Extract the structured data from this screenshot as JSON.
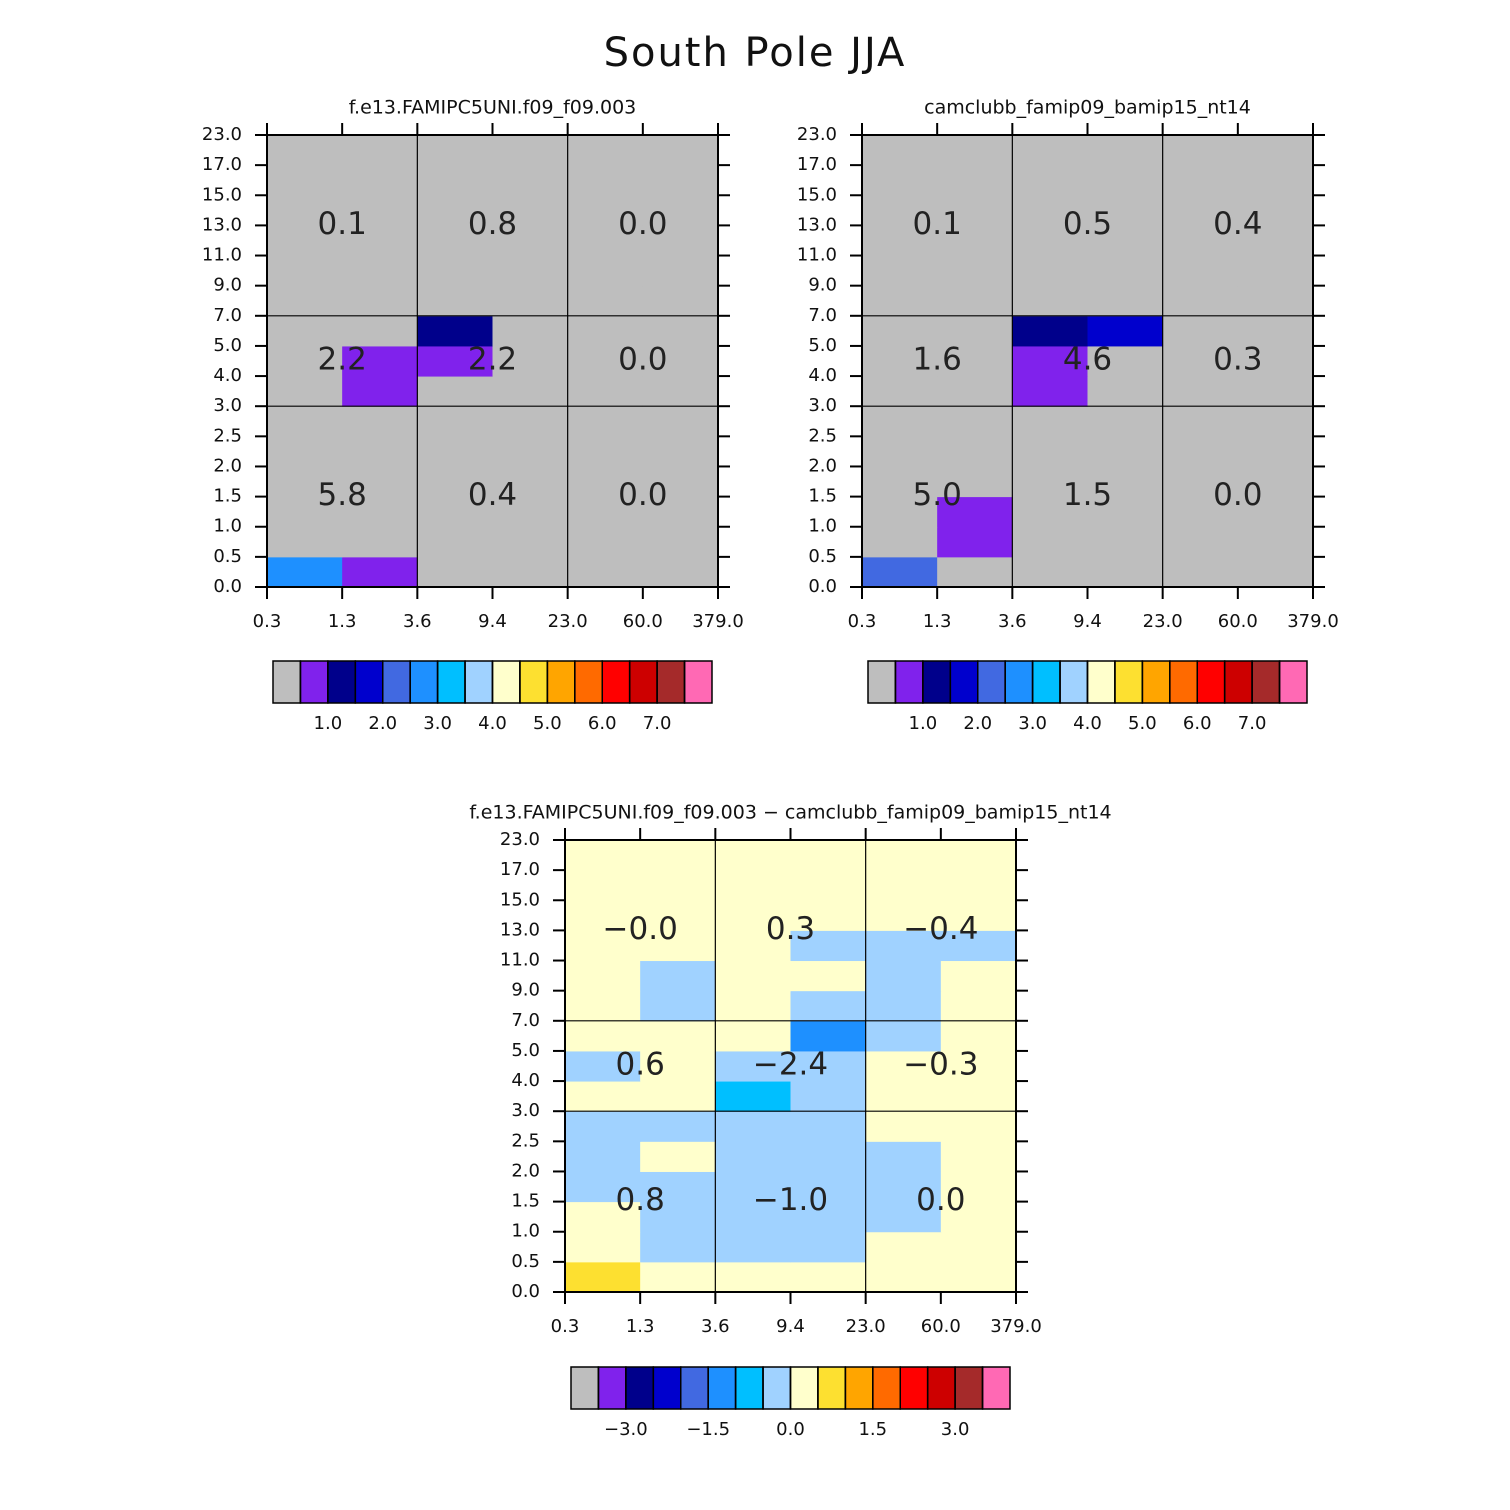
{
  "title": "South Pole JJA",
  "chart_data": [
    {
      "type": "heatmap",
      "title": "f.e13.FAMIPC5UNI.f09_f09.003",
      "x_edges": [
        "0.3",
        "1.3",
        "3.6",
        "9.4",
        "23.0",
        "60.0",
        "379.0"
      ],
      "y_edges": [
        "0.0",
        "0.5",
        "1.0",
        "1.5",
        "2.0",
        "2.5",
        "3.0",
        "4.0",
        "5.0",
        "7.0",
        "9.0",
        "11.0",
        "13.0",
        "15.0",
        "17.0",
        "23.0"
      ],
      "cells": [
        [
          2.75,
          0.75,
          0.1,
          0.1,
          0,
          0
        ],
        [
          0.1,
          0.1,
          0.1,
          0.1,
          0,
          0
        ],
        [
          0.1,
          0.1,
          0.1,
          0.1,
          0,
          0
        ],
        [
          0.1,
          0.1,
          0.1,
          0.1,
          0,
          0
        ],
        [
          0.1,
          0.1,
          0.1,
          0.1,
          0,
          0
        ],
        [
          0.1,
          0.1,
          0.1,
          0.1,
          0,
          0
        ],
        [
          0.1,
          0.75,
          0.1,
          0.1,
          0,
          0
        ],
        [
          0.1,
          0.75,
          0.75,
          0.1,
          0,
          0
        ],
        [
          0.1,
          0.1,
          1.25,
          0.1,
          0,
          0
        ],
        [
          0.1,
          0.1,
          0.1,
          0.1,
          0,
          0
        ],
        [
          0.1,
          0.1,
          0.1,
          0.1,
          0,
          0
        ],
        [
          0.1,
          0.1,
          0.1,
          0.1,
          0,
          0
        ],
        [
          0.1,
          0.1,
          0.1,
          0.1,
          0,
          0
        ],
        [
          0.1,
          0.1,
          0.1,
          0.1,
          0,
          0
        ],
        [
          0.1,
          0.1,
          0.1,
          0.1,
          0,
          0
        ]
      ],
      "group_values": [
        [
          5.8,
          0.4,
          0.0
        ],
        [
          2.2,
          2.2,
          0.0
        ],
        [
          0.1,
          0.8,
          0.0
        ]
      ],
      "group_value_labels": [
        [
          "5.8",
          "0.4",
          "0.0"
        ],
        [
          "2.2",
          "2.2",
          "0.0"
        ],
        [
          "0.1",
          "0.8",
          "0.0"
        ]
      ],
      "colorbar": {
        "colors": [
          "#bebebe",
          "#8022ec",
          "#00008b",
          "#0000cd",
          "#4169e1",
          "#1e90ff",
          "#00bfff",
          "#a0d2ff",
          "#ffffcc",
          "#fde030",
          "#ffa500",
          "#ff6a00",
          "#ff0000",
          "#cd0000",
          "#a52a2a",
          "#ff69b4"
        ],
        "levels": [
          0.5,
          1,
          1.5,
          2,
          2.5,
          3,
          3.5,
          4,
          4.5,
          5,
          5.5,
          6,
          6.5,
          7,
          7.5
        ],
        "ticks": [
          {
            "value": 1,
            "label": "1.0"
          },
          {
            "value": 2,
            "label": "2.0"
          },
          {
            "value": 3,
            "label": "3.0"
          },
          {
            "value": 4,
            "label": "4.0"
          },
          {
            "value": 5,
            "label": "5.0"
          },
          {
            "value": 6,
            "label": "6.0"
          },
          {
            "value": 7,
            "label": "7.0"
          }
        ]
      }
    },
    {
      "type": "heatmap",
      "title": "camclubb_famip09_bamip15_nt14",
      "x_edges": [
        "0.3",
        "1.3",
        "3.6",
        "9.4",
        "23.0",
        "60.0",
        "379.0"
      ],
      "y_edges": [
        "0.0",
        "0.5",
        "1.0",
        "1.5",
        "2.0",
        "2.5",
        "3.0",
        "4.0",
        "5.0",
        "7.0",
        "9.0",
        "11.0",
        "13.0",
        "15.0",
        "17.0",
        "23.0"
      ],
      "cells": [
        [
          2.25,
          0.1,
          0.1,
          0.1,
          0,
          0
        ],
        [
          0.1,
          0.75,
          0.1,
          0.1,
          0,
          0
        ],
        [
          0.1,
          0.75,
          0.1,
          0.1,
          0,
          0
        ],
        [
          0.1,
          0.1,
          0.1,
          0.1,
          0,
          0
        ],
        [
          0.1,
          0.1,
          0.1,
          0.1,
          0,
          0
        ],
        [
          0.1,
          0.1,
          0.1,
          0.1,
          0,
          0
        ],
        [
          0.1,
          0.1,
          0.75,
          0.1,
          0.1,
          0.1
        ],
        [
          0.1,
          0.1,
          0.75,
          0.1,
          0.1,
          0.1
        ],
        [
          0.1,
          0.1,
          1.25,
          1.75,
          0.1,
          0.1
        ],
        [
          0.1,
          0.1,
          0.1,
          0.1,
          0.1,
          0.1
        ],
        [
          0.1,
          0.1,
          0.1,
          0.1,
          0.1,
          0.1
        ],
        [
          0.1,
          0.1,
          0.1,
          0.1,
          0.1,
          0.1
        ],
        [
          0.1,
          0.1,
          0.1,
          0.1,
          0.1,
          0.1
        ],
        [
          0.1,
          0.1,
          0.1,
          0.1,
          0.1,
          0.1
        ],
        [
          0.1,
          0.1,
          0.1,
          0.1,
          0.1,
          0.1
        ]
      ],
      "group_values": [
        [
          5.0,
          1.5,
          0.0
        ],
        [
          1.6,
          4.6,
          0.3
        ],
        [
          0.1,
          0.5,
          0.4
        ]
      ],
      "group_value_labels": [
        [
          "5.0",
          "1.5",
          "0.0"
        ],
        [
          "1.6",
          "4.6",
          "0.3"
        ],
        [
          "0.1",
          "0.5",
          "0.4"
        ]
      ],
      "colorbar": {
        "colors": [
          "#bebebe",
          "#8022ec",
          "#00008b",
          "#0000cd",
          "#4169e1",
          "#1e90ff",
          "#00bfff",
          "#a0d2ff",
          "#ffffcc",
          "#fde030",
          "#ffa500",
          "#ff6a00",
          "#ff0000",
          "#cd0000",
          "#a52a2a",
          "#ff69b4"
        ],
        "levels": [
          0.5,
          1,
          1.5,
          2,
          2.5,
          3,
          3.5,
          4,
          4.5,
          5,
          5.5,
          6,
          6.5,
          7,
          7.5
        ],
        "ticks": [
          {
            "value": 1,
            "label": "1.0"
          },
          {
            "value": 2,
            "label": "2.0"
          },
          {
            "value": 3,
            "label": "3.0"
          },
          {
            "value": 4,
            "label": "4.0"
          },
          {
            "value": 5,
            "label": "5.0"
          },
          {
            "value": 6,
            "label": "6.0"
          },
          {
            "value": 7,
            "label": "7.0"
          }
        ]
      }
    },
    {
      "type": "heatmap",
      "title": "f.e13.FAMIPC5UNI.f09_f09.003 − camclubb_famip09_bamip15_nt14",
      "x_edges": [
        "0.3",
        "1.3",
        "3.6",
        "9.4",
        "23.0",
        "60.0",
        "379.0"
      ],
      "y_edges": [
        "0.0",
        "0.5",
        "1.0",
        "1.5",
        "2.0",
        "2.5",
        "3.0",
        "4.0",
        "5.0",
        "7.0",
        "9.0",
        "11.0",
        "13.0",
        "15.0",
        "17.0",
        "23.0"
      ],
      "cells": [
        [
          0.75,
          0.25,
          0.25,
          0.25,
          0.25,
          0.25
        ],
        [
          0.25,
          -0.25,
          -0.25,
          -0.25,
          0.25,
          0.25
        ],
        [
          0.25,
          -0.25,
          -0.25,
          -0.25,
          -0.25,
          0.25
        ],
        [
          -0.25,
          -0.25,
          -0.25,
          -0.25,
          -0.25,
          0.25
        ],
        [
          -0.25,
          0.25,
          -0.25,
          -0.25,
          -0.25,
          0.25
        ],
        [
          -0.25,
          -0.25,
          -0.25,
          -0.25,
          0.25,
          0.25
        ],
        [
          0.25,
          0.25,
          -0.75,
          -0.25,
          0.25,
          0.25
        ],
        [
          -0.25,
          0.25,
          -0.25,
          -0.25,
          0.25,
          0.25
        ],
        [
          0.25,
          0.25,
          0.25,
          -1.25,
          -0.25,
          0.25
        ],
        [
          0.25,
          -0.25,
          0.25,
          -0.25,
          -0.25,
          0.25
        ],
        [
          0.25,
          -0.25,
          0.25,
          0.25,
          -0.25,
          0.25
        ],
        [
          0.25,
          0.25,
          0.25,
          -0.25,
          -0.25,
          -0.25
        ],
        [
          0.25,
          0.25,
          0.25,
          0.25,
          0.25,
          0.25
        ],
        [
          0.25,
          0.25,
          0.25,
          0.25,
          0.25,
          0.25
        ],
        [
          0.25,
          0.25,
          0.25,
          0.25,
          0.25,
          0.25
        ]
      ],
      "group_values": [
        [
          0.8,
          -1.0,
          0.0
        ],
        [
          0.6,
          -2.4,
          -0.3
        ],
        [
          -0.0,
          0.3,
          -0.4
        ]
      ],
      "group_value_labels": [
        [
          "0.8",
          "−1.0",
          "0.0"
        ],
        [
          "0.6",
          "−2.4",
          "−0.3"
        ],
        [
          "−0.0",
          "0.3",
          "−0.4"
        ]
      ],
      "colorbar": {
        "colors": [
          "#bebebe",
          "#8022ec",
          "#00008b",
          "#0000cd",
          "#4169e1",
          "#1e90ff",
          "#00bfff",
          "#a0d2ff",
          "#ffffcc",
          "#fde030",
          "#ffa500",
          "#ff6a00",
          "#ff0000",
          "#cd0000",
          "#a52a2a",
          "#ff69b4"
        ],
        "levels": [
          -3.5,
          -3,
          -2.5,
          -2,
          -1.5,
          -1,
          -0.5,
          0,
          0.5,
          1,
          1.5,
          2,
          2.5,
          3,
          3.5
        ],
        "ticks": [
          {
            "value": -3,
            "label": "−3.0"
          },
          {
            "value": -1.5,
            "label": "−1.5"
          },
          {
            "value": 0,
            "label": "0.0"
          },
          {
            "value": 1.5,
            "label": "1.5"
          },
          {
            "value": 3,
            "label": "3.0"
          }
        ]
      }
    }
  ]
}
